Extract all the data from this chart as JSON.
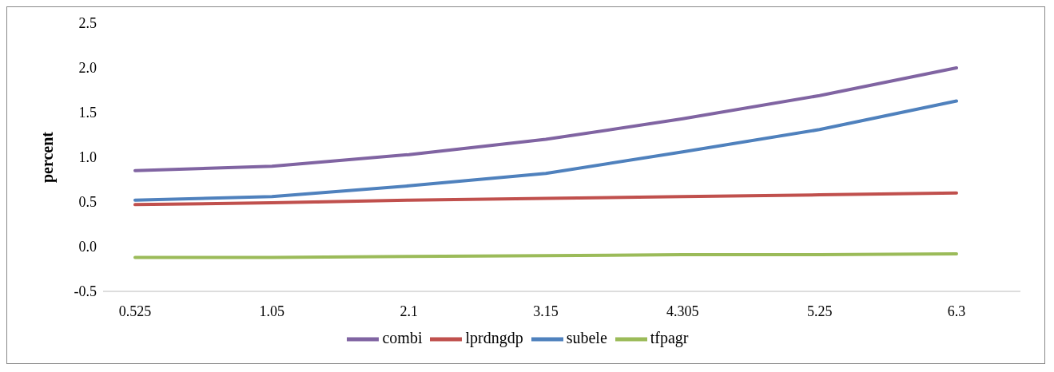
{
  "chart_data": {
    "type": "line",
    "ylabel": "percent",
    "categories": [
      "0.525",
      "1.05",
      "2.1",
      "3.15",
      "4.305",
      "5.25",
      "6.3"
    ],
    "series": [
      {
        "name": "subele",
        "color": "#4f81bd",
        "values": [
          0.52,
          0.56,
          0.68,
          0.82,
          1.06,
          1.31,
          1.63
        ]
      },
      {
        "name": "lprdngdp",
        "color": "#c0504d",
        "values": [
          0.47,
          0.49,
          0.52,
          0.54,
          0.56,
          0.58,
          0.6
        ]
      },
      {
        "name": "tfpagr",
        "color": "#9bbb59",
        "values": [
          -0.12,
          -0.12,
          -0.11,
          -0.1,
          -0.09,
          -0.09,
          -0.08
        ]
      },
      {
        "name": "combi",
        "color": "#8064a2",
        "values": [
          0.85,
          0.9,
          1.03,
          1.2,
          1.43,
          1.69,
          2.0
        ]
      }
    ],
    "ylim": [
      -0.5,
      2.5
    ],
    "yticks": [
      {
        "value": -0.5,
        "label": "-0.5"
      },
      {
        "value": 0,
        "label": "0.0"
      },
      {
        "value": 0.5,
        "label": "0.5"
      },
      {
        "value": 1,
        "label": "1.0"
      },
      {
        "value": 1.5,
        "label": "1.5"
      },
      {
        "value": 2,
        "label": "2.0"
      },
      {
        "value": 2.5,
        "label": "2.5"
      }
    ],
    "grid": false,
    "legend": "bottom",
    "marker": "none",
    "line_style": "solid"
  }
}
